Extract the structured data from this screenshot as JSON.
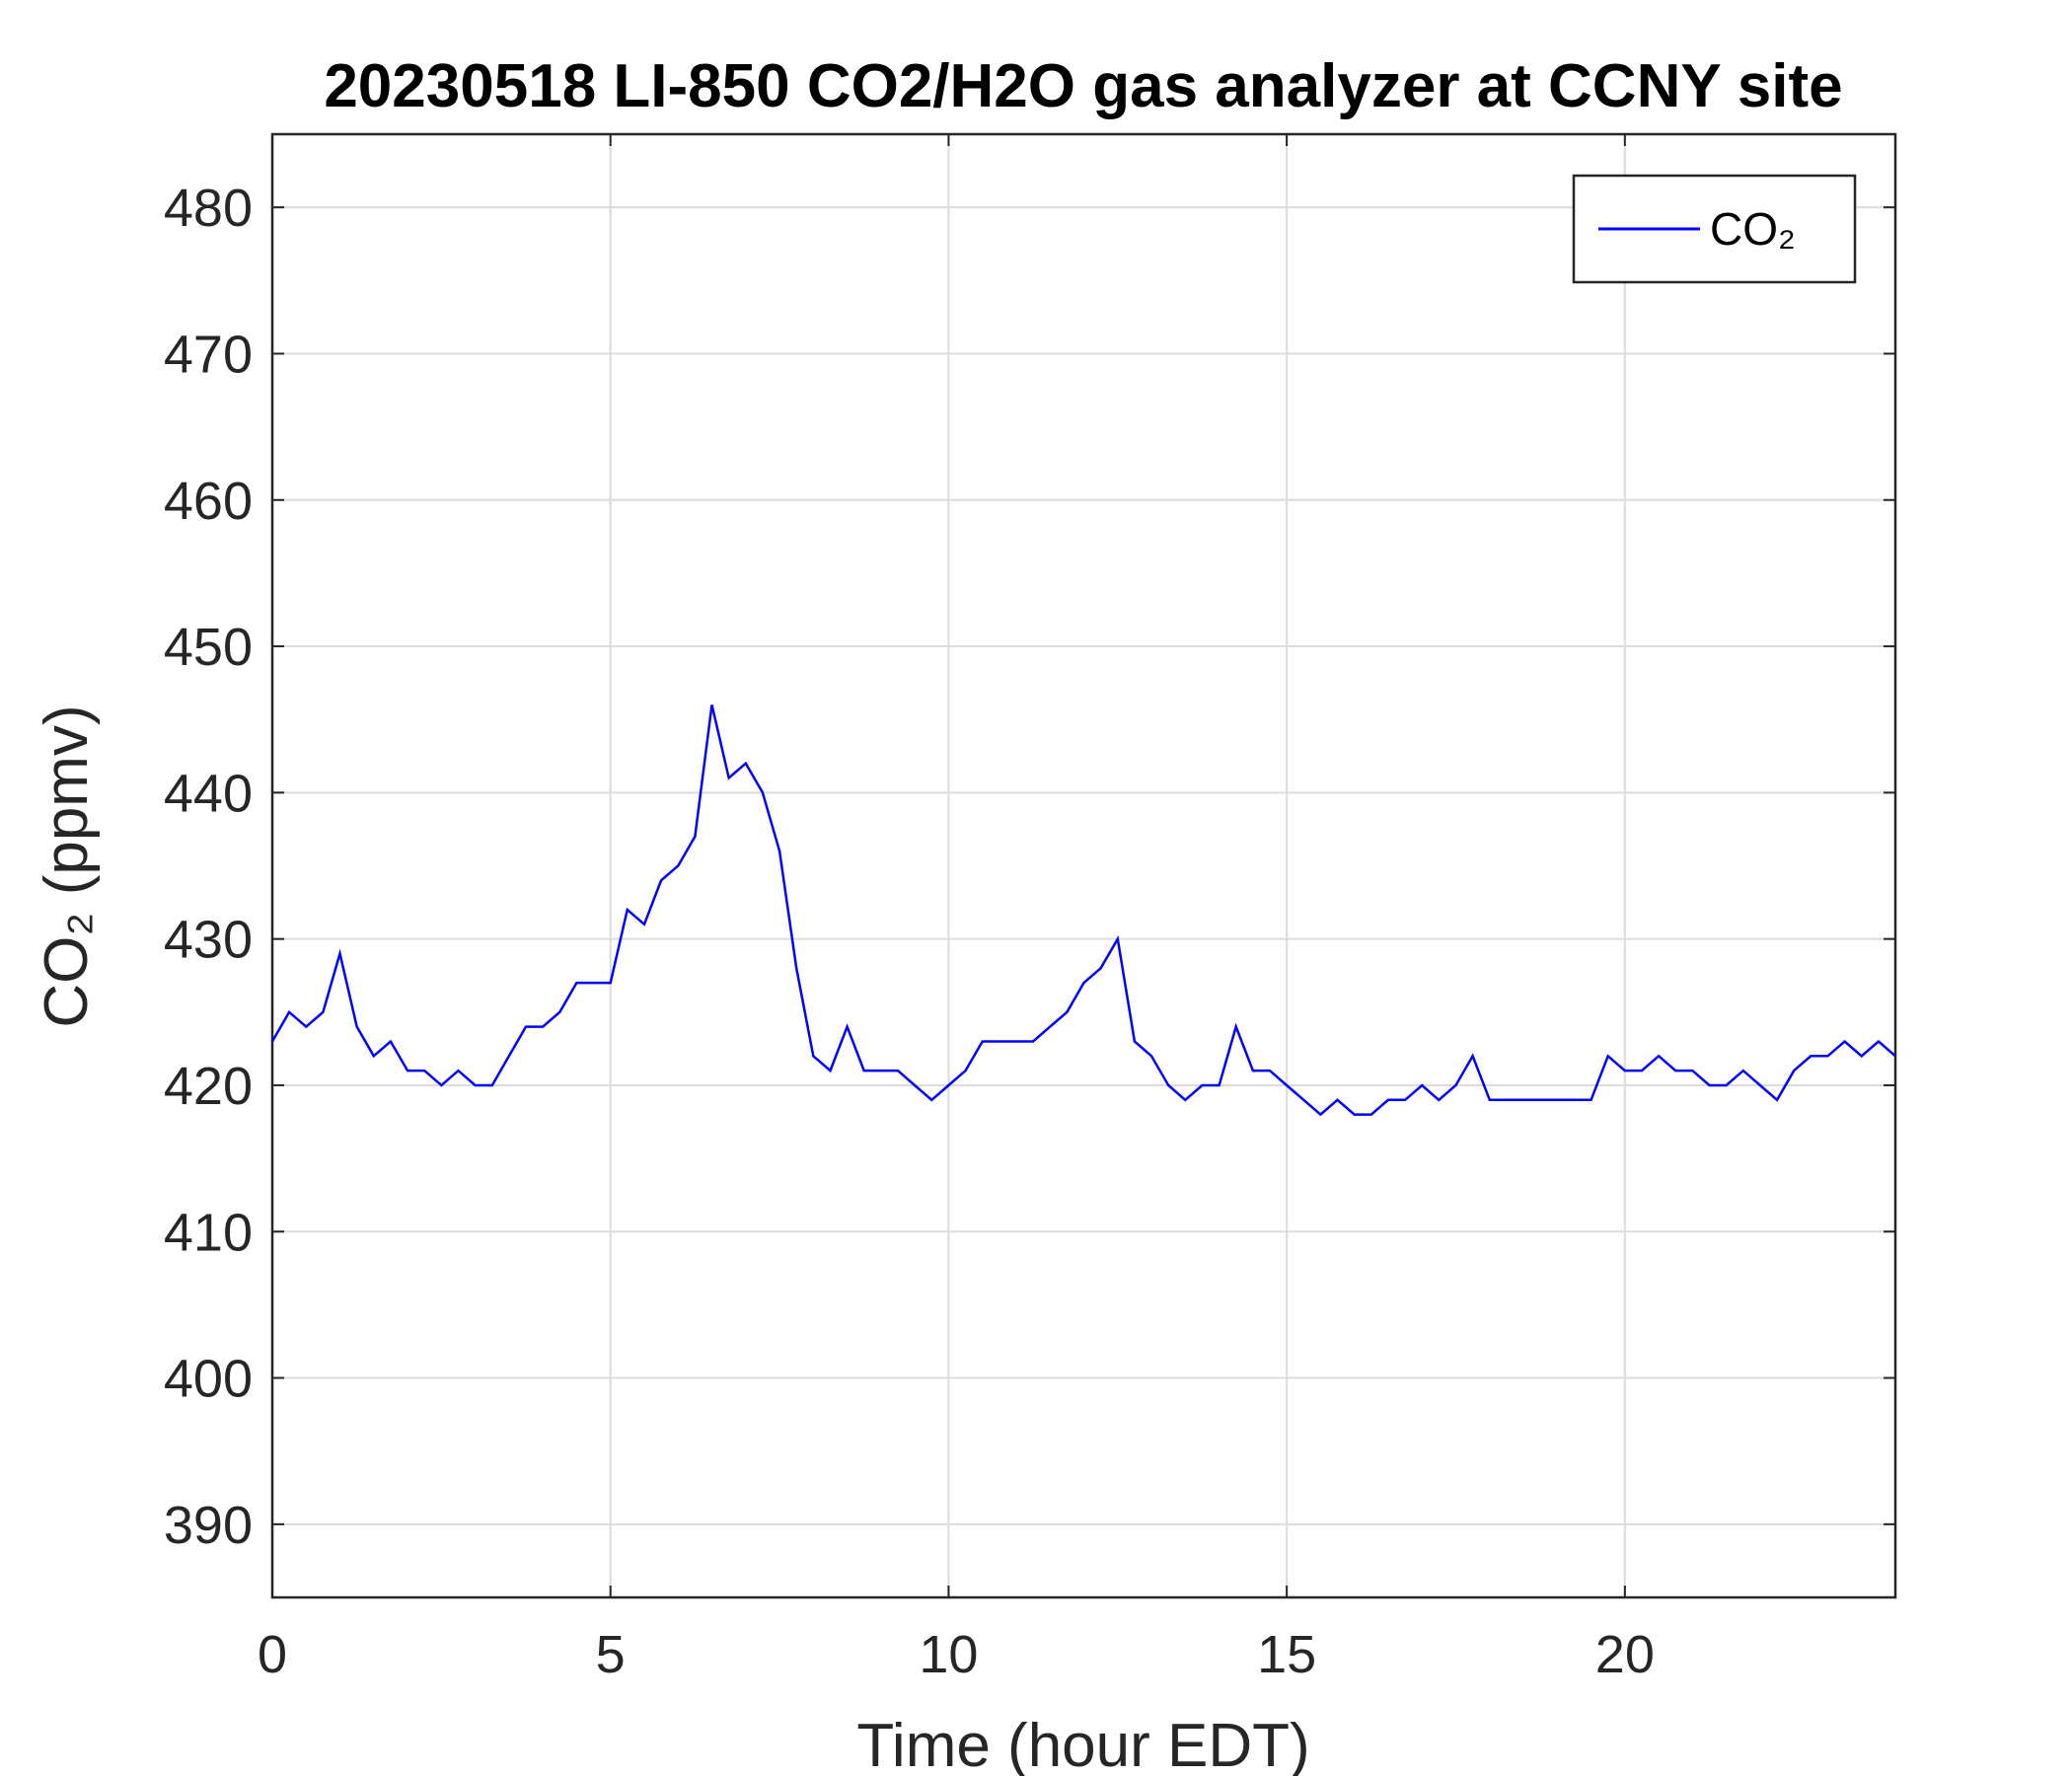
{
  "chart_data": {
    "type": "line",
    "title": "20230518 LI-850 CO2/H2O gas analyzer at CCNY site",
    "xlabel": "Time (hour EDT)",
    "ylabel": "CO₂ (ppmv)",
    "x": [
      0,
      0.25,
      0.5,
      0.75,
      1,
      1.25,
      1.5,
      1.75,
      2,
      2.25,
      2.5,
      2.75,
      3,
      3.25,
      3.5,
      3.75,
      4,
      4.25,
      4.5,
      4.75,
      5,
      5.25,
      5.5,
      5.75,
      6,
      6.25,
      6.5,
      6.75,
      7,
      7.25,
      7.5,
      7.75,
      8,
      8.25,
      8.5,
      8.75,
      9,
      9.25,
      9.5,
      9.75,
      10,
      10.25,
      10.5,
      10.75,
      11,
      11.25,
      11.5,
      11.75,
      12,
      12.25,
      12.5,
      12.75,
      13,
      13.25,
      13.5,
      13.75,
      14,
      14.25,
      14.5,
      14.75,
      15,
      15.25,
      15.5,
      15.75,
      16,
      16.25,
      16.5,
      16.75,
      17,
      17.25,
      17.5,
      17.75,
      18,
      18.25,
      18.5,
      18.75,
      19,
      19.25,
      19.5,
      19.75,
      20,
      20.25,
      20.5,
      20.75,
      21,
      21.25,
      21.5,
      21.75,
      22,
      22.25,
      22.5,
      22.75,
      23,
      23.25,
      23.5,
      23.75,
      24
    ],
    "series": [
      {
        "name": "CO₂",
        "color": "#0000ff",
        "values": [
          423,
          425,
          424,
          425,
          429,
          424,
          422,
          423,
          421,
          421,
          420,
          421,
          420,
          420,
          422,
          424,
          424,
          425,
          427,
          427,
          427,
          432,
          431,
          434,
          435,
          437,
          446,
          441,
          442,
          440,
          436,
          428,
          422,
          421,
          424,
          421,
          421,
          421,
          420,
          419,
          420,
          421,
          423,
          423,
          423,
          423,
          424,
          425,
          427,
          428,
          430,
          423,
          422,
          420,
          419,
          420,
          420,
          424,
          421,
          421,
          420,
          419,
          418,
          419,
          418,
          418,
          419,
          419,
          420,
          419,
          420,
          422,
          419,
          419,
          419,
          419,
          419,
          419,
          419,
          422,
          421,
          421,
          422,
          421,
          421,
          420,
          420,
          421,
          420,
          419,
          421,
          422,
          422,
          423,
          422,
          423,
          422
        ]
      }
    ],
    "xlim": [
      0,
      24
    ],
    "xticks": [
      0,
      5,
      10,
      15,
      20
    ],
    "ylim": [
      385,
      485
    ],
    "yticks": [
      390,
      400,
      410,
      420,
      430,
      440,
      450,
      460,
      470,
      480
    ],
    "grid": true,
    "legend": "upper right"
  }
}
